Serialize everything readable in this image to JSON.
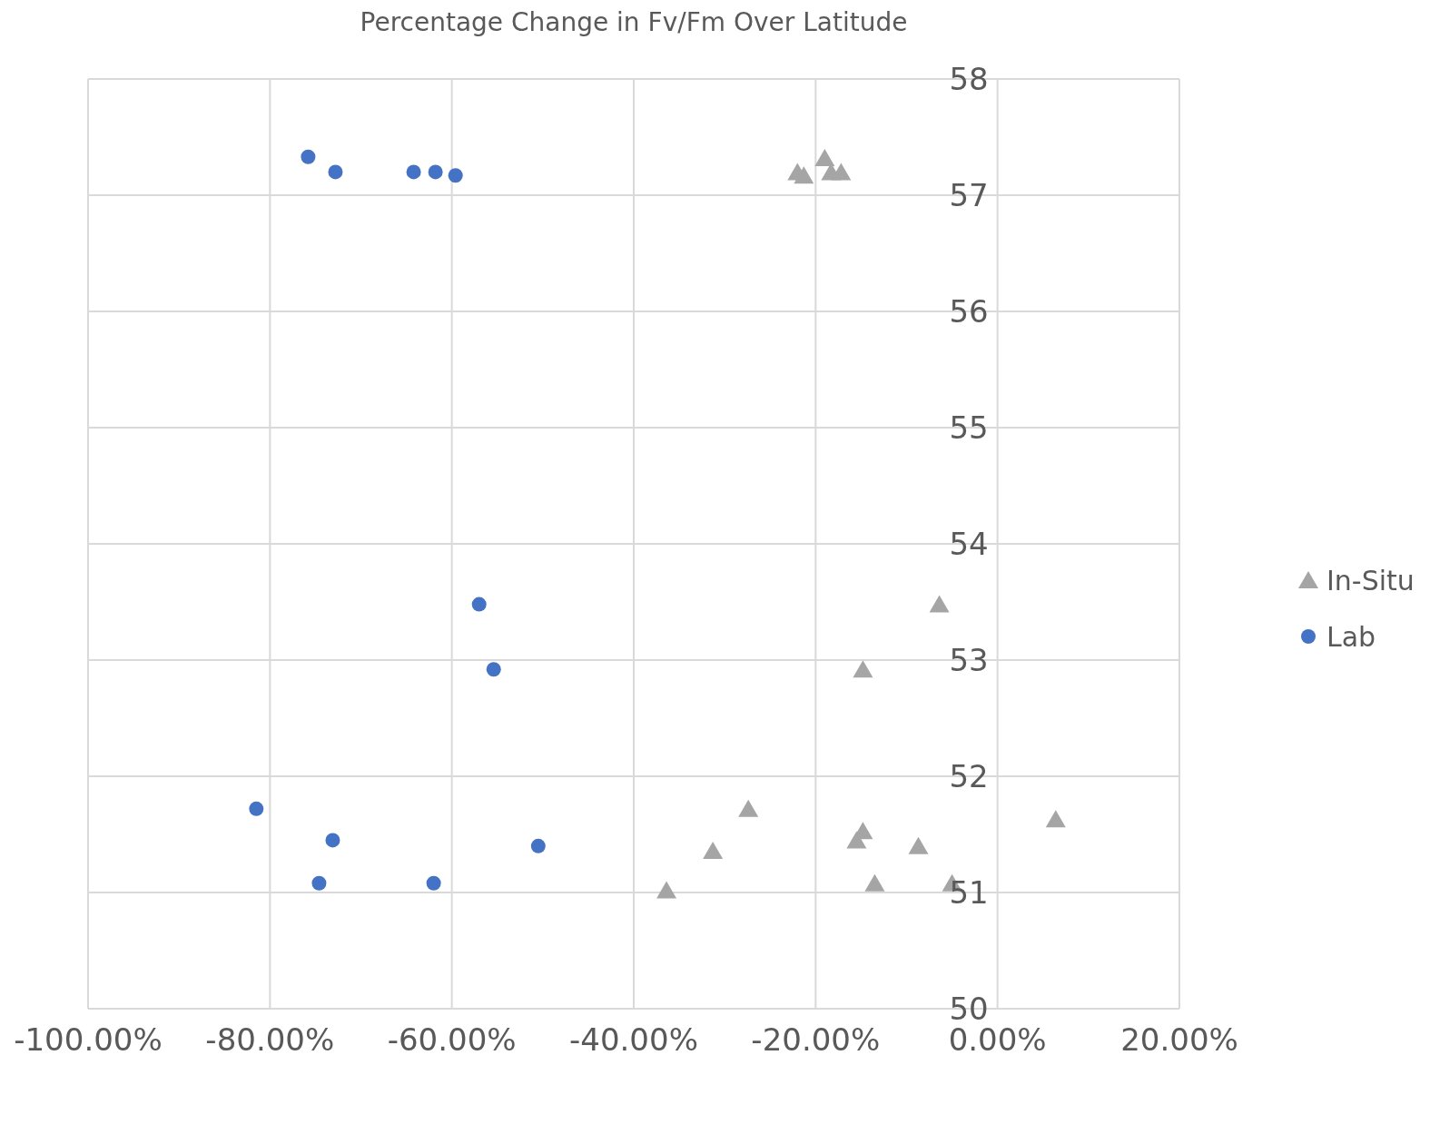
{
  "chart_data": {
    "type": "scatter",
    "title": "Percentage Change in Fv/Fm Over Latitude",
    "xlim": [
      -1,
      0.2
    ],
    "xticks": [
      {
        "value": -1,
        "label": "-100.00%"
      },
      {
        "value": -0.8,
        "label": "-80.00%"
      },
      {
        "value": -0.6,
        "label": "-60.00%"
      },
      {
        "value": -0.4,
        "label": "-40.00%"
      },
      {
        "value": -0.2,
        "label": "-20.00%"
      },
      {
        "value": 0,
        "label": "0.00%"
      },
      {
        "value": 0.2,
        "label": "20.00%"
      }
    ],
    "ylim": [
      50,
      58
    ],
    "yticks": [
      50,
      51,
      52,
      53,
      54,
      55,
      56,
      57,
      58
    ],
    "grid": true,
    "legend": "right",
    "series": [
      {
        "name": "In-Situ",
        "color": "#a5a5a5",
        "marker": "triangle",
        "x": [
          -0.22,
          -0.213,
          -0.19,
          -0.183,
          -0.172,
          -0.064,
          -0.148,
          -0.274,
          -0.313,
          -0.364,
          -0.148,
          -0.155,
          -0.087,
          -0.135,
          -0.05,
          0.064
        ],
        "values": [
          57.2,
          57.17,
          57.32,
          57.2,
          57.2,
          53.48,
          52.92,
          51.72,
          51.36,
          51.02,
          51.53,
          51.45,
          51.4,
          51.08,
          51.08,
          51.63
        ]
      },
      {
        "name": "Lab",
        "color": "#4472c4",
        "marker": "circle",
        "x": [
          -0.758,
          -0.728,
          -0.642,
          -0.618,
          -0.596,
          -0.57,
          -0.554,
          -0.815,
          -0.731,
          -0.505,
          -0.746,
          -0.62
        ],
        "values": [
          57.33,
          57.2,
          57.2,
          57.2,
          57.17,
          53.48,
          52.92,
          51.72,
          51.45,
          51.4,
          51.08,
          51.08
        ]
      }
    ]
  }
}
